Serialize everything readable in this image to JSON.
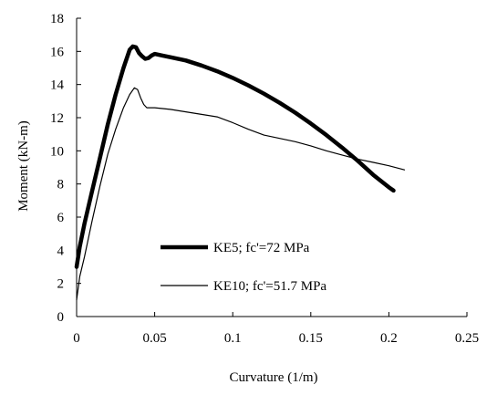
{
  "chart_data": {
    "type": "line",
    "title": "",
    "xlabel": "Curvature (1/m)",
    "ylabel": "Moment (kN-m)",
    "xlim": [
      0,
      0.25
    ],
    "ylim": [
      0,
      18
    ],
    "x_ticks": [
      "0",
      "0.05",
      "0.1",
      "0.15",
      "0.2",
      "0.25"
    ],
    "y_ticks": [
      "0",
      "2",
      "4",
      "6",
      "8",
      "10",
      "12",
      "14",
      "16",
      "18"
    ],
    "grid": false,
    "legend_position": "lower-left inside plot",
    "series": [
      {
        "name": "KE5; fc'=72 MPa",
        "line_weight": "thick",
        "color": "#000000",
        "x": [
          0,
          0.002,
          0.005,
          0.01,
          0.015,
          0.02,
          0.025,
          0.03,
          0.034,
          0.036,
          0.038,
          0.04,
          0.042,
          0.044,
          0.046,
          0.048,
          0.05,
          0.055,
          0.06,
          0.07,
          0.08,
          0.09,
          0.1,
          0.11,
          0.12,
          0.13,
          0.14,
          0.15,
          0.16,
          0.17,
          0.18,
          0.19,
          0.2,
          0.203
        ],
        "y": [
          3.0,
          4.2,
          5.6,
          7.6,
          9.6,
          11.6,
          13.4,
          15.0,
          16.1,
          16.3,
          16.25,
          15.9,
          15.7,
          15.55,
          15.6,
          15.75,
          15.85,
          15.75,
          15.65,
          15.45,
          15.15,
          14.8,
          14.4,
          13.95,
          13.45,
          12.9,
          12.3,
          11.65,
          10.95,
          10.2,
          9.4,
          8.55,
          7.8,
          7.6
        ]
      },
      {
        "name": "KE10; fc'=51.7 MPa",
        "line_weight": "thin",
        "color": "#000000",
        "x": [
          0,
          0.002,
          0.005,
          0.01,
          0.015,
          0.02,
          0.025,
          0.03,
          0.034,
          0.037,
          0.039,
          0.041,
          0.043,
          0.045,
          0.048,
          0.05,
          0.06,
          0.07,
          0.08,
          0.09,
          0.1,
          0.11,
          0.12,
          0.13,
          0.14,
          0.15,
          0.16,
          0.17,
          0.18,
          0.19,
          0.2,
          0.21
        ],
        "y": [
          1.0,
          2.4,
          3.6,
          5.8,
          7.9,
          9.8,
          11.3,
          12.6,
          13.4,
          13.8,
          13.7,
          13.2,
          12.8,
          12.6,
          12.6,
          12.6,
          12.5,
          12.35,
          12.2,
          12.05,
          11.7,
          11.3,
          10.95,
          10.75,
          10.55,
          10.3,
          10.0,
          9.75,
          9.5,
          9.3,
          9.1,
          8.85
        ]
      }
    ]
  }
}
